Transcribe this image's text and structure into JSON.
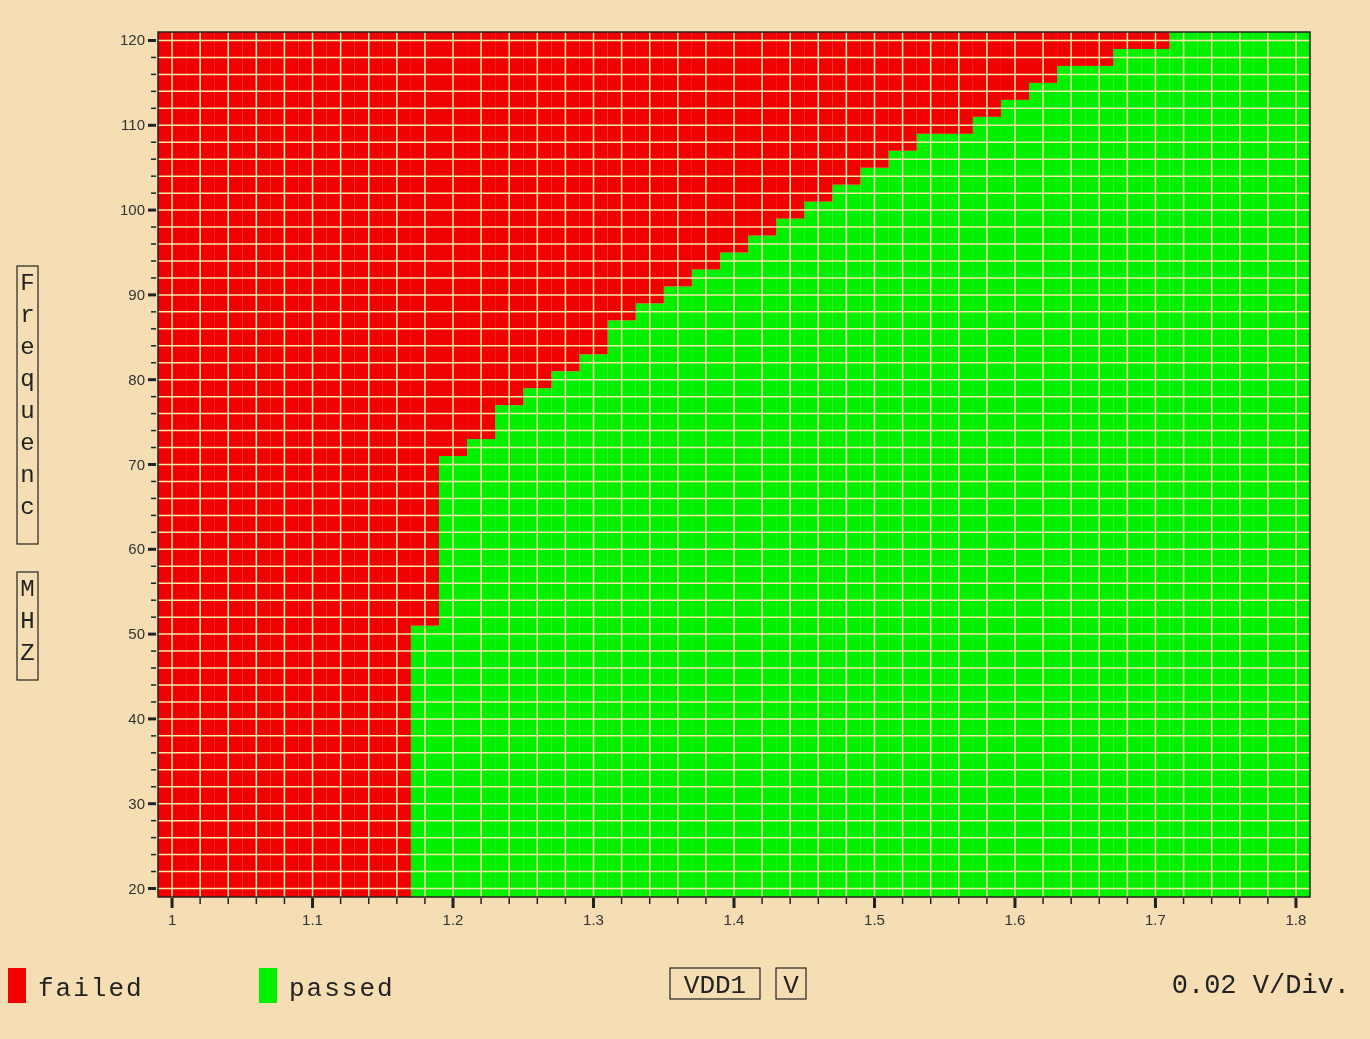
{
  "chart_data": {
    "type": "bar",
    "xlabel": "VDD1 V",
    "ylabel": "Frequenc MHZ",
    "annotations": [
      "0.02 V/Div."
    ],
    "categories": [
      "1",
      null,
      null,
      null,
      null,
      "1.1",
      null,
      null,
      null,
      null,
      "1.2",
      null,
      null,
      null,
      null,
      "1.3",
      null,
      null,
      null,
      null,
      "1.4",
      null,
      null,
      null,
      null,
      "1.5",
      null,
      null,
      null,
      null,
      "1.6",
      null,
      null,
      null,
      null,
      "1.7",
      null,
      null,
      null,
      null,
      "1.8"
    ],
    "ylim": [
      19,
      121
    ],
    "yticks": [
      20,
      {
        "value": 22,
        "label": null
      },
      {
        "value": 24,
        "label": null
      },
      {
        "value": 26,
        "label": null
      },
      {
        "value": 28,
        "label": null
      },
      30,
      {
        "value": 32,
        "label": null
      },
      {
        "value": 34,
        "label": null
      },
      {
        "value": 36,
        "label": null
      },
      {
        "value": 38,
        "label": null
      },
      40,
      {
        "value": 42,
        "label": null
      },
      {
        "value": 44,
        "label": null
      },
      {
        "value": 46,
        "label": null
      },
      {
        "value": 48,
        "label": null
      },
      50,
      {
        "value": 52,
        "label": null
      },
      {
        "value": 54,
        "label": null
      },
      {
        "value": 56,
        "label": null
      },
      {
        "value": 58,
        "label": null
      },
      60,
      {
        "value": 62,
        "label": null
      },
      {
        "value": 64,
        "label": null
      },
      {
        "value": 66,
        "label": null
      },
      {
        "value": 68,
        "label": null
      },
      70,
      {
        "value": 72,
        "label": null
      },
      {
        "value": 74,
        "label": null
      },
      {
        "value": 76,
        "label": null
      },
      {
        "value": 78,
        "label": null
      },
      80,
      {
        "value": 82,
        "label": null
      },
      {
        "value": 84,
        "label": null
      },
      {
        "value": 86,
        "label": null
      },
      {
        "value": 88,
        "label": null
      },
      90,
      {
        "value": 92,
        "label": null
      },
      {
        "value": 94,
        "label": null
      },
      {
        "value": 96,
        "label": null
      },
      {
        "value": 98,
        "label": null
      },
      100,
      {
        "value": 102,
        "label": null
      },
      {
        "value": 104,
        "label": null
      },
      {
        "value": 106,
        "label": null
      },
      {
        "value": 108,
        "label": null
      },
      110,
      {
        "value": 112,
        "label": null
      },
      {
        "value": 114,
        "label": null
      },
      {
        "value": 116,
        "label": null
      },
      {
        "value": 118,
        "label": null
      },
      120
    ],
    "grid": true,
    "legend": "bottom",
    "series": [
      {
        "name": "passed",
        "color": "#00f000",
        "values": [
          null,
          null,
          null,
          null,
          null,
          null,
          null,
          null,
          null,
          32,
          52,
          54,
          58,
          60,
          62,
          64,
          68,
          70,
          72,
          74,
          76,
          78,
          80,
          82,
          84,
          86,
          88,
          90,
          90,
          92,
          94,
          96,
          98,
          98,
          100,
          100,
          102,
          102,
          102,
          102,
          102
        ],
        "base": [
          null,
          null,
          null,
          null,
          null,
          null,
          null,
          null,
          null,
          19,
          19,
          19,
          19,
          19,
          19,
          19,
          19,
          19,
          19,
          19,
          19,
          19,
          19,
          19,
          19,
          19,
          19,
          19,
          19,
          19,
          19,
          19,
          19,
          19,
          19,
          19,
          19,
          19,
          19,
          19,
          19
        ]
      },
      {
        "name": "failed",
        "color": "#f00000",
        "values": [
          102,
          102,
          102,
          102,
          102,
          102,
          102,
          102,
          102,
          70,
          50,
          48,
          44,
          42,
          40,
          38,
          34,
          32,
          30,
          28,
          26,
          24,
          22,
          20,
          18,
          16,
          14,
          12,
          12,
          10,
          8,
          6,
          4,
          4,
          2,
          2,
          null,
          null,
          null,
          null,
          null
        ],
        "base": [
          19,
          19,
          19,
          19,
          19,
          19,
          19,
          19,
          19,
          51,
          71,
          73,
          77,
          79,
          81,
          83,
          87,
          89,
          91,
          93,
          95,
          97,
          99,
          101,
          103,
          105,
          107,
          109,
          109,
          111,
          113,
          115,
          117,
          117,
          119,
          119,
          null,
          null,
          null,
          null,
          null
        ]
      }
    ]
  }
}
